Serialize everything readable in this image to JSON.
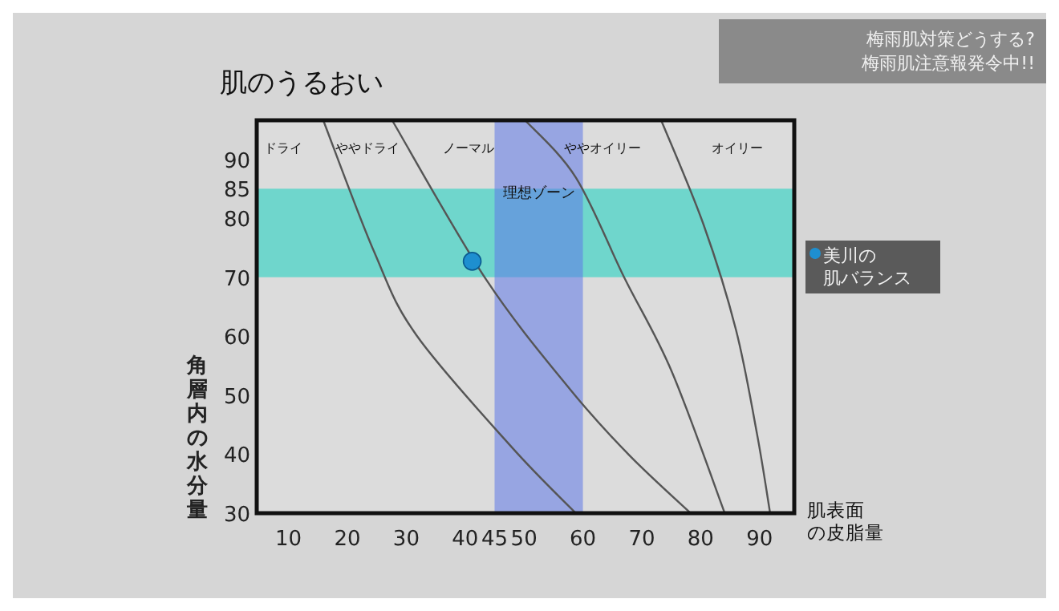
{
  "chart_data": {
    "type": "line",
    "title": "肌のうるおい",
    "xlabel": "肌表面の皮脂量",
    "ylabel": "角層内の水分量",
    "xlim": [
      4.6,
      95.9
    ],
    "ylim": [
      30,
      96.6
    ],
    "xticks": [
      10,
      20,
      30,
      40,
      45,
      50,
      60,
      70,
      80,
      90
    ],
    "yticks": [
      30,
      40,
      50,
      60,
      70,
      80,
      85,
      90
    ],
    "grid": false,
    "legend": "right",
    "marker": "none",
    "line_style": "solid",
    "bands": [
      {
        "axis": "y",
        "from": 70,
        "to": 85,
        "color": "#6fd6cc"
      },
      {
        "axis": "x",
        "from": 45,
        "to": 60,
        "color": "#5f78e8"
      }
    ],
    "series": [
      {
        "color": "#555555",
        "x": [
          15.9,
          24.5,
          31.7,
          48,
          58.8
        ],
        "values": [
          96.6,
          74.4,
          60.2,
          41.1,
          30
        ]
      },
      {
        "color": "#555555",
        "x": [
          27.6,
          43.5,
          57.9,
          67.9,
          78.3
        ],
        "values": [
          96.6,
          69.7,
          50.9,
          39.8,
          30
        ]
      },
      {
        "color": "#555555",
        "x": [
          50.2,
          58.8,
          67,
          75.1,
          84.1
        ],
        "values": [
          96.6,
          86.9,
          70,
          54,
          30
        ]
      },
      {
        "color": "#555555",
        "x": [
          73.3,
          80.5,
          86,
          89.6,
          91.8
        ],
        "values": [
          96.6,
          78.9,
          61.1,
          43.3,
          30
        ]
      },
      {
        "type": "scatter",
        "name": "美川の肌バランス",
        "color": "#1e8fd0",
        "marker": "circle",
        "x": [
          41.2
        ],
        "values": [
          72.7
        ]
      }
    ],
    "annotations": [
      "ドライ",
      "ややドライ",
      "ノーマル",
      "ややオイリー",
      "オイリー",
      "理想ゾーン",
      "梅雨肌対策どうする? 梅雨肌注意報発令中!!"
    ]
  }
}
